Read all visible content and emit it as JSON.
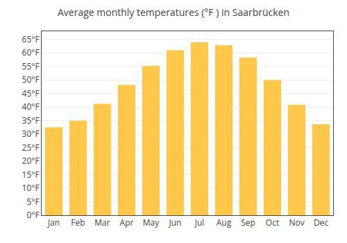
{
  "chart_data": {
    "type": "bar",
    "title": "Average monthly temperatures (°F ) in Saarbrücken",
    "categories": [
      "Jan",
      "Feb",
      "Mar",
      "Apr",
      "May",
      "Jun",
      "Jul",
      "Aug",
      "Sep",
      "Oct",
      "Nov",
      "Dec"
    ],
    "values": [
      32.5,
      34.9,
      41.2,
      48.2,
      55.2,
      61.0,
      63.9,
      62.8,
      58.3,
      50.0,
      40.8,
      33.6
    ],
    "color": "#FFC84A",
    "ylim": [
      0,
      68
    ],
    "yticks": [
      {
        "value": 0,
        "label": "0°F"
      },
      {
        "value": 5,
        "label": "5°F"
      },
      {
        "value": 10,
        "label": "10°F"
      },
      {
        "value": 15,
        "label": "15°F"
      },
      {
        "value": 20,
        "label": "20°F"
      },
      {
        "value": 25,
        "label": "25°F"
      },
      {
        "value": 30,
        "label": "30°F"
      },
      {
        "value": 35,
        "label": "35°F"
      },
      {
        "value": 40,
        "label": "40°F"
      },
      {
        "value": 45,
        "label": "45°F"
      },
      {
        "value": 50,
        "label": "50°F"
      },
      {
        "value": 55,
        "label": "55°F"
      },
      {
        "value": 60,
        "label": "60°F"
      },
      {
        "value": 65,
        "label": "65°F"
      }
    ],
    "grid": true
  }
}
